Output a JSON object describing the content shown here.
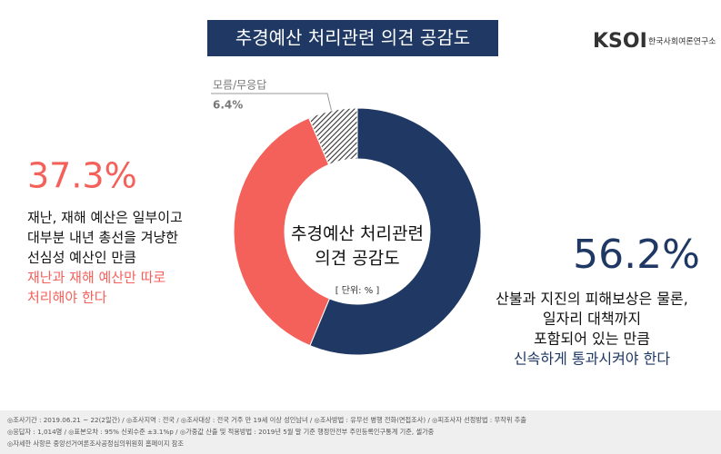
{
  "chart_data": {
    "type": "pie",
    "title": "추경예산 처리관련 의견 공감도",
    "logo": "KSOI",
    "organization": "한국사회여론연구소",
    "center_title": [
      "추경예산 처리관련",
      "의견 공감도"
    ],
    "unit": "[ 단위: % ]",
    "values": [
      56.2,
      37.3,
      6.4
    ],
    "value_labels": [
      "56.2%",
      "37.3%",
      "6.4%"
    ],
    "colors": [
      "#1f3864",
      "#f4605a",
      "#555555"
    ],
    "hatched": [
      false,
      false,
      true
    ],
    "descriptions": [
      [
        "산불과 지진의 피해보상은 물론,",
        "일자리 대책까지",
        "포함되어 있는 만큼"
      ],
      [
        "재난, 재해 예산은 일부이고",
        "대부분 내년 총선을 겨냥한",
        "선심성 예산인 만큼"
      ],
      [
        "모름/무응답"
      ]
    ],
    "emphasis": [
      [
        "신속하게 통과시켜야 한다"
      ],
      [
        "재난과 재해 예산만 따로",
        "처리해야 한다"
      ],
      []
    ],
    "footnotes": [
      "◎조사기간 : 2019.06.21 ~ 22(2일간) / ◎조사지역 : 전국 / ◎조사대상 : 전국 거주 만 19세 이상 성인남녀 / ◎조사방법 : 유무선 병행 전화(면접조사) / ◎피조사자 선정방법 : 무작위 추출",
      "◎응답자 : 1,014명 / ◎표본오차 : 95% 신뢰수준 ±3.1%p / ◎가중값 산출 및 적용방법 : 2019년 5월 말 기준 행정안전부 주민등록인구통계 기준, 셀가중",
      "◎자세한 사항은 중앙선거여론조사공정심의위원회 홈페이지 참조"
    ]
  }
}
